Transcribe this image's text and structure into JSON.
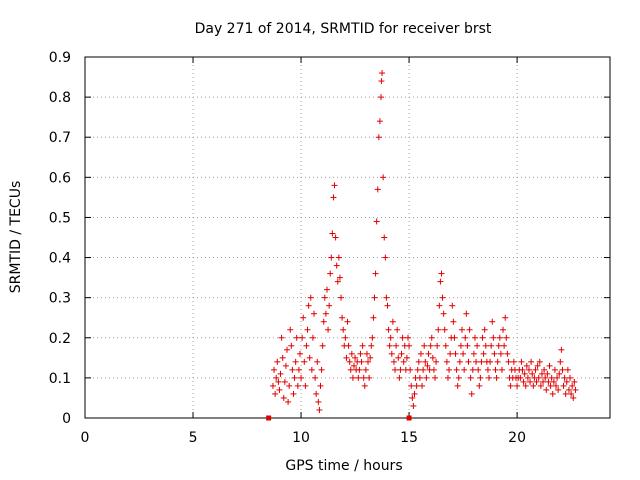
{
  "chart_data": {
    "type": "scatter",
    "title": "Day 271 of 2014, SRMTID for receiver brst",
    "xlabel": "GPS time / hours",
    "ylabel": "SRMTID / TECUs",
    "xlim": [
      0,
      24.3
    ],
    "ylim": [
      0,
      0.9
    ],
    "xticks": [
      0,
      5,
      10,
      15,
      20
    ],
    "yticks": [
      0,
      0.1,
      0.2,
      0.3,
      0.4,
      0.5,
      0.6,
      0.7,
      0.8,
      0.9
    ],
    "xtick_labels": [
      "0",
      "5",
      "10",
      "15",
      "20"
    ],
    "ytick_labels": [
      "0",
      "0.1",
      "0.2",
      "0.3",
      "0.4",
      "0.5",
      "0.6",
      "0.7",
      "0.8",
      "0.9"
    ],
    "grid": true,
    "marker": "plus",
    "color": "#e00000",
    "zero_markers": [
      [
        8.5,
        0
      ],
      [
        15.0,
        0
      ]
    ],
    "series": [
      {
        "name": "SRMTID",
        "points": [
          [
            8.7,
            0.08
          ],
          [
            8.75,
            0.12
          ],
          [
            8.8,
            0.06
          ],
          [
            8.85,
            0.1
          ],
          [
            8.9,
            0.14
          ],
          [
            8.95,
            0.09
          ],
          [
            9.0,
            0.07
          ],
          [
            9.05,
            0.11
          ],
          [
            9.1,
            0.2
          ],
          [
            9.15,
            0.15
          ],
          [
            9.2,
            0.05
          ],
          [
            9.25,
            0.09
          ],
          [
            9.3,
            0.13
          ],
          [
            9.35,
            0.17
          ],
          [
            9.4,
            0.04
          ],
          [
            9.45,
            0.08
          ],
          [
            9.5,
            0.22
          ],
          [
            9.55,
            0.18
          ],
          [
            9.6,
            0.12
          ],
          [
            9.65,
            0.06
          ],
          [
            9.7,
            0.1
          ],
          [
            9.75,
            0.14
          ],
          [
            9.8,
            0.2
          ],
          [
            9.85,
            0.08
          ],
          [
            9.9,
            0.12
          ],
          [
            9.95,
            0.16
          ],
          [
            10.0,
            0.1
          ],
          [
            10.05,
            0.2
          ],
          [
            10.1,
            0.25
          ],
          [
            10.15,
            0.14
          ],
          [
            10.2,
            0.08
          ],
          [
            10.25,
            0.18
          ],
          [
            10.3,
            0.22
          ],
          [
            10.35,
            0.28
          ],
          [
            10.4,
            0.15
          ],
          [
            10.45,
            0.3
          ],
          [
            10.5,
            0.12
          ],
          [
            10.55,
            0.2
          ],
          [
            10.6,
            0.26
          ],
          [
            10.65,
            0.1
          ],
          [
            10.7,
            0.06
          ],
          [
            10.75,
            0.14
          ],
          [
            10.8,
            0.04
          ],
          [
            10.85,
            0.02
          ],
          [
            10.9,
            0.08
          ],
          [
            10.95,
            0.12
          ],
          [
            11.0,
            0.18
          ],
          [
            11.05,
            0.24
          ],
          [
            11.1,
            0.3
          ],
          [
            11.15,
            0.26
          ],
          [
            11.2,
            0.32
          ],
          [
            11.25,
            0.22
          ],
          [
            11.3,
            0.28
          ],
          [
            11.35,
            0.36
          ],
          [
            11.4,
            0.4
          ],
          [
            11.45,
            0.46
          ],
          [
            11.5,
            0.55
          ],
          [
            11.55,
            0.58
          ],
          [
            11.6,
            0.45
          ],
          [
            11.65,
            0.38
          ],
          [
            11.7,
            0.34
          ],
          [
            11.75,
            0.4
          ],
          [
            11.8,
            0.35
          ],
          [
            11.85,
            0.3
          ],
          [
            11.9,
            0.25
          ],
          [
            11.95,
            0.22
          ],
          [
            12.0,
            0.18
          ],
          [
            12.05,
            0.2
          ],
          [
            12.1,
            0.15
          ],
          [
            12.15,
            0.24
          ],
          [
            12.2,
            0.18
          ],
          [
            12.25,
            0.14
          ],
          [
            12.3,
            0.12
          ],
          [
            12.35,
            0.16
          ],
          [
            12.4,
            0.1
          ],
          [
            12.45,
            0.13
          ],
          [
            12.5,
            0.15
          ],
          [
            12.55,
            0.12
          ],
          [
            12.6,
            0.14
          ],
          [
            12.65,
            0.1
          ],
          [
            12.7,
            0.12
          ],
          [
            12.75,
            0.16
          ],
          [
            12.8,
            0.14
          ],
          [
            12.85,
            0.18
          ],
          [
            12.9,
            0.1
          ],
          [
            12.95,
            0.08
          ],
          [
            13.0,
            0.12
          ],
          [
            13.05,
            0.16
          ],
          [
            13.1,
            0.14
          ],
          [
            13.15,
            0.1
          ],
          [
            13.2,
            0.15
          ],
          [
            13.25,
            0.18
          ],
          [
            13.3,
            0.2
          ],
          [
            13.35,
            0.25
          ],
          [
            13.4,
            0.3
          ],
          [
            13.45,
            0.36
          ],
          [
            13.5,
            0.49
          ],
          [
            13.55,
            0.57
          ],
          [
            13.6,
            0.7
          ],
          [
            13.65,
            0.74
          ],
          [
            13.7,
            0.8
          ],
          [
            13.72,
            0.84
          ],
          [
            13.75,
            0.86
          ],
          [
            13.8,
            0.6
          ],
          [
            13.85,
            0.45
          ],
          [
            13.9,
            0.4
          ],
          [
            13.95,
            0.3
          ],
          [
            14.0,
            0.28
          ],
          [
            14.05,
            0.22
          ],
          [
            14.1,
            0.18
          ],
          [
            14.15,
            0.2
          ],
          [
            14.2,
            0.16
          ],
          [
            14.25,
            0.24
          ],
          [
            14.3,
            0.14
          ],
          [
            14.35,
            0.12
          ],
          [
            14.4,
            0.18
          ],
          [
            14.45,
            0.22
          ],
          [
            14.5,
            0.15
          ],
          [
            14.55,
            0.1
          ],
          [
            14.6,
            0.12
          ],
          [
            14.65,
            0.16
          ],
          [
            14.7,
            0.2
          ],
          [
            14.75,
            0.14
          ],
          [
            14.8,
            0.18
          ],
          [
            14.85,
            0.12
          ],
          [
            14.9,
            0.15
          ],
          [
            14.95,
            0.2
          ],
          [
            15.0,
            0.18
          ],
          [
            15.05,
            0.12
          ],
          [
            15.1,
            0.08
          ],
          [
            15.15,
            0.05
          ],
          [
            15.2,
            0.03
          ],
          [
            15.25,
            0.06
          ],
          [
            15.3,
            0.1
          ],
          [
            15.35,
            0.08
          ],
          [
            15.4,
            0.12
          ],
          [
            15.45,
            0.14
          ],
          [
            15.5,
            0.1
          ],
          [
            15.55,
            0.16
          ],
          [
            15.6,
            0.08
          ],
          [
            15.65,
            0.12
          ],
          [
            15.7,
            0.18
          ],
          [
            15.75,
            0.14
          ],
          [
            15.8,
            0.1
          ],
          [
            15.85,
            0.13
          ],
          [
            15.9,
            0.16
          ],
          [
            15.95,
            0.12
          ],
          [
            16.0,
            0.18
          ],
          [
            16.05,
            0.2
          ],
          [
            16.1,
            0.15
          ],
          [
            16.15,
            0.12
          ],
          [
            16.2,
            0.1
          ],
          [
            16.25,
            0.14
          ],
          [
            16.3,
            0.18
          ],
          [
            16.35,
            0.22
          ],
          [
            16.4,
            0.28
          ],
          [
            16.45,
            0.34
          ],
          [
            16.5,
            0.36
          ],
          [
            16.55,
            0.3
          ],
          [
            16.6,
            0.26
          ],
          [
            16.65,
            0.22
          ],
          [
            16.7,
            0.18
          ],
          [
            16.75,
            0.14
          ],
          [
            16.8,
            0.1
          ],
          [
            16.85,
            0.12
          ],
          [
            16.9,
            0.16
          ],
          [
            16.95,
            0.2
          ],
          [
            17.0,
            0.28
          ],
          [
            17.05,
            0.24
          ],
          [
            17.1,
            0.2
          ],
          [
            17.15,
            0.16
          ],
          [
            17.2,
            0.12
          ],
          [
            17.25,
            0.08
          ],
          [
            17.3,
            0.1
          ],
          [
            17.35,
            0.14
          ],
          [
            17.4,
            0.18
          ],
          [
            17.45,
            0.22
          ],
          [
            17.5,
            0.16
          ],
          [
            17.55,
            0.12
          ],
          [
            17.6,
            0.2
          ],
          [
            17.65,
            0.26
          ],
          [
            17.7,
            0.18
          ],
          [
            17.75,
            0.14
          ],
          [
            17.8,
            0.22
          ],
          [
            17.85,
            0.1
          ],
          [
            17.9,
            0.06
          ],
          [
            17.95,
            0.12
          ],
          [
            18.0,
            0.16
          ],
          [
            18.05,
            0.2
          ],
          [
            18.1,
            0.14
          ],
          [
            18.15,
            0.18
          ],
          [
            18.2,
            0.12
          ],
          [
            18.25,
            0.08
          ],
          [
            18.3,
            0.1
          ],
          [
            18.35,
            0.14
          ],
          [
            18.4,
            0.2
          ],
          [
            18.45,
            0.16
          ],
          [
            18.5,
            0.22
          ],
          [
            18.55,
            0.18
          ],
          [
            18.6,
            0.14
          ],
          [
            18.65,
            0.12
          ],
          [
            18.7,
            0.1
          ],
          [
            18.75,
            0.14
          ],
          [
            18.8,
            0.18
          ],
          [
            18.85,
            0.24
          ],
          [
            18.9,
            0.2
          ],
          [
            18.95,
            0.16
          ],
          [
            19.0,
            0.12
          ],
          [
            19.05,
            0.1
          ],
          [
            19.1,
            0.14
          ],
          [
            19.15,
            0.18
          ],
          [
            19.2,
            0.2
          ],
          [
            19.25,
            0.16
          ],
          [
            19.3,
            0.12
          ],
          [
            19.35,
            0.22
          ],
          [
            19.4,
            0.18
          ],
          [
            19.45,
            0.25
          ],
          [
            19.5,
            0.2
          ],
          [
            19.55,
            0.16
          ],
          [
            19.6,
            0.14
          ],
          [
            19.65,
            0.1
          ],
          [
            19.7,
            0.08
          ],
          [
            19.75,
            0.12
          ],
          [
            19.8,
            0.1
          ],
          [
            19.85,
            0.14
          ],
          [
            19.9,
            0.12
          ],
          [
            19.95,
            0.1
          ],
          [
            20.0,
            0.08
          ],
          [
            20.05,
            0.1
          ],
          [
            20.1,
            0.12
          ],
          [
            20.15,
            0.1
          ],
          [
            20.2,
            0.14
          ],
          [
            20.25,
            0.12
          ],
          [
            20.3,
            0.09
          ],
          [
            20.35,
            0.11
          ],
          [
            20.4,
            0.08
          ],
          [
            20.45,
            0.13
          ],
          [
            20.5,
            0.1
          ],
          [
            20.55,
            0.12
          ],
          [
            20.6,
            0.09
          ],
          [
            20.65,
            0.14
          ],
          [
            20.7,
            0.11
          ],
          [
            20.75,
            0.08
          ],
          [
            20.8,
            0.1
          ],
          [
            20.85,
            0.12
          ],
          [
            20.9,
            0.09
          ],
          [
            20.95,
            0.13
          ],
          [
            21.0,
            0.1
          ],
          [
            21.05,
            0.14
          ],
          [
            21.1,
            0.08
          ],
          [
            21.15,
            0.11
          ],
          [
            21.2,
            0.09
          ],
          [
            21.25,
            0.12
          ],
          [
            21.3,
            0.1
          ],
          [
            21.35,
            0.07
          ],
          [
            21.4,
            0.11
          ],
          [
            21.45,
            0.09
          ],
          [
            21.5,
            0.13
          ],
          [
            21.55,
            0.08
          ],
          [
            21.6,
            0.1
          ],
          [
            21.65,
            0.06
          ],
          [
            21.7,
            0.09
          ],
          [
            21.75,
            0.12
          ],
          [
            21.8,
            0.08
          ],
          [
            21.85,
            0.1
          ],
          [
            21.9,
            0.07
          ],
          [
            21.95,
            0.11
          ],
          [
            22.0,
            0.14
          ],
          [
            22.05,
            0.17
          ],
          [
            22.1,
            0.12
          ],
          [
            22.15,
            0.08
          ],
          [
            22.2,
            0.1
          ],
          [
            22.25,
            0.06
          ],
          [
            22.3,
            0.09
          ],
          [
            22.35,
            0.12
          ],
          [
            22.4,
            0.07
          ],
          [
            22.45,
            0.1
          ],
          [
            22.5,
            0.06
          ],
          [
            22.55,
            0.08
          ],
          [
            22.6,
            0.05
          ],
          [
            22.65,
            0.09
          ],
          [
            22.7,
            0.07
          ]
        ]
      }
    ]
  }
}
